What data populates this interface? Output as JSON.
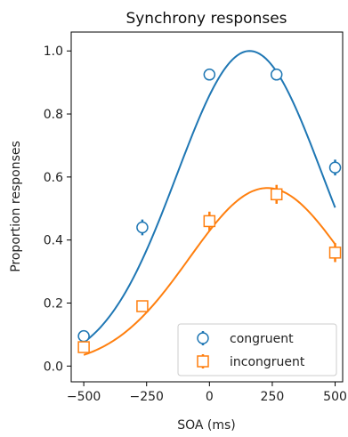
{
  "chart_data": {
    "type": "scatter",
    "title": "Synchrony responses",
    "xlabel": "SOA (ms)",
    "ylabel": "Proportion  responses",
    "xlim": [
      -550,
      530
    ],
    "ylim": [
      -0.05,
      1.06
    ],
    "xticks": [
      -500,
      -250,
      0,
      250,
      500
    ],
    "xtick_labels": [
      "−500",
      "−250",
      "0",
      "250",
      "500"
    ],
    "yticks": [
      0.0,
      0.2,
      0.4,
      0.6,
      0.8,
      1.0
    ],
    "ytick_labels": [
      "0.0",
      "0.2",
      "0.4",
      "0.6",
      "0.8",
      "1.0"
    ],
    "grid": false,
    "legend_position": "bottom-right",
    "series": [
      {
        "name": "congruent",
        "color": "#1f77b4",
        "marker": "circle",
        "x": [
          -500,
          -267,
          0,
          267,
          500
        ],
        "y": [
          0.095,
          0.44,
          0.925,
          0.925,
          0.63
        ],
        "yerr": [
          0.012,
          0.025,
          0.015,
          0.015,
          0.025
        ],
        "fit": {
          "type": "gaussian",
          "amplitude": 1.0,
          "mu": 160,
          "sigma": 290
        }
      },
      {
        "name": "incongruent",
        "color": "#ff7f0e",
        "marker": "square",
        "x": [
          -500,
          -267,
          0,
          267,
          500
        ],
        "y": [
          0.06,
          0.19,
          0.46,
          0.545,
          0.36
        ],
        "yerr": [
          0.012,
          0.015,
          0.03,
          0.03,
          0.03
        ],
        "fit": {
          "type": "gaussian",
          "amplitude": 0.565,
          "mu": 230,
          "sigma": 310
        }
      }
    ]
  }
}
